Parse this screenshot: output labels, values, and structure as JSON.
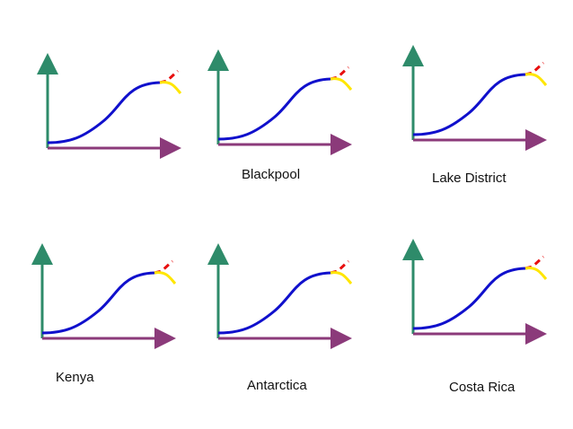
{
  "colors": {
    "y_axis": "#2e8b6a",
    "x_axis": "#8b3a7a",
    "curve_main": "#1010cc",
    "branch_up": "#e81010",
    "branch_down": "#ffe600"
  },
  "graphs": [
    {
      "label": ""
    },
    {
      "label": "Blackpool"
    },
    {
      "label": "Lake District"
    },
    {
      "label": "Kenya"
    },
    {
      "label": "Antarctica"
    },
    {
      "label": "Costa Rica"
    }
  ]
}
